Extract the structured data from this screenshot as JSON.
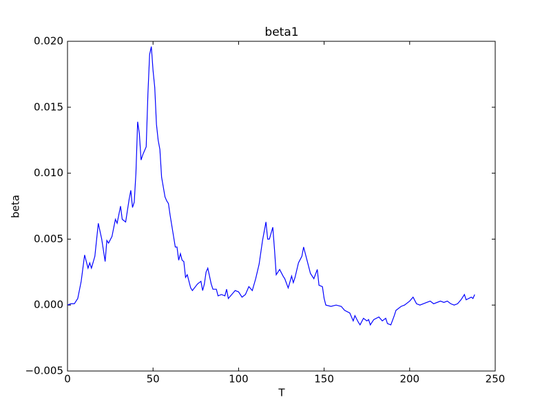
{
  "chart_data": {
    "type": "line",
    "title": "beta1",
    "xlabel": "T",
    "ylabel": "beta",
    "color": "#0000ff",
    "x": [
      0,
      2,
      4,
      6,
      8,
      10,
      12,
      13,
      14,
      16,
      18,
      20,
      22,
      23,
      24,
      26,
      28,
      29,
      31,
      32,
      34,
      36,
      37,
      38,
      39,
      40,
      41,
      42,
      43,
      44,
      46,
      47,
      48,
      49,
      50,
      51,
      52,
      53,
      54,
      55,
      57,
      58,
      59,
      60,
      62,
      63,
      64,
      65,
      66,
      67,
      68,
      69,
      70,
      72,
      73,
      76,
      78,
      79,
      80,
      81,
      82,
      84,
      85,
      87,
      88,
      90,
      92,
      93,
      94,
      96,
      98,
      100,
      102,
      104,
      106,
      108,
      110,
      112,
      114,
      116,
      117,
      118,
      120,
      121,
      122,
      124,
      126,
      127,
      129,
      131,
      132,
      133,
      135,
      137,
      138,
      140,
      142,
      144,
      146,
      147,
      149,
      150,
      151,
      154,
      157,
      160,
      162,
      165,
      167,
      168,
      170,
      171,
      173,
      175,
      176,
      177,
      179,
      182,
      184,
      186,
      187,
      189,
      191,
      192,
      195,
      197,
      200,
      202,
      204,
      206,
      210,
      212,
      214,
      218,
      220,
      222,
      224,
      226,
      228,
      230,
      232,
      233,
      236,
      237,
      238
    ],
    "values": [
      0.0,
      0.0001,
      0.0001,
      0.0005,
      0.0018,
      0.0038,
      0.0028,
      0.0032,
      0.0028,
      0.0037,
      0.0062,
      0.005,
      0.0033,
      0.0049,
      0.0047,
      0.0052,
      0.0065,
      0.0062,
      0.0075,
      0.0065,
      0.0063,
      0.008,
      0.0087,
      0.0074,
      0.0078,
      0.01,
      0.0139,
      0.013,
      0.011,
      0.0114,
      0.012,
      0.016,
      0.019,
      0.0196,
      0.0178,
      0.0165,
      0.0137,
      0.0125,
      0.0118,
      0.0097,
      0.0082,
      0.0079,
      0.0077,
      0.0068,
      0.0052,
      0.0044,
      0.0044,
      0.0034,
      0.0039,
      0.0034,
      0.0033,
      0.0021,
      0.0023,
      0.0013,
      0.0011,
      0.0016,
      0.0018,
      0.0011,
      0.0016,
      0.0025,
      0.0028,
      0.0016,
      0.0012,
      0.0012,
      0.0007,
      0.0008,
      0.0007,
      0.0012,
      0.0005,
      0.0008,
      0.0011,
      0.001,
      0.0006,
      0.0008,
      0.0014,
      0.0011,
      0.002,
      0.0031,
      0.0049,
      0.0063,
      0.005,
      0.005,
      0.0059,
      0.0042,
      0.0023,
      0.0027,
      0.0022,
      0.002,
      0.0013,
      0.0022,
      0.0017,
      0.0021,
      0.0032,
      0.0037,
      0.0044,
      0.0034,
      0.0024,
      0.002,
      0.0027,
      0.0015,
      0.0014,
      0.0005,
      0.0,
      -0.0001,
      0.0,
      -0.0001,
      -0.0004,
      -0.0006,
      -0.0012,
      -0.0008,
      -0.0013,
      -0.0015,
      -0.001,
      -0.0012,
      -0.0011,
      -0.0015,
      -0.0011,
      -0.0009,
      -0.0012,
      -0.001,
      -0.0014,
      -0.0015,
      -0.0008,
      -0.0004,
      -0.0001,
      0.0,
      0.0003,
      0.0006,
      0.0001,
      0.0,
      0.0002,
      0.0003,
      0.0001,
      0.0003,
      0.0002,
      0.0003,
      0.0001,
      0.0,
      0.0001,
      0.0004,
      0.0008,
      0.0004,
      0.0006,
      0.0005,
      0.0008
    ],
    "xlim": [
      0,
      250
    ],
    "xticks": [
      0,
      50,
      100,
      150,
      200,
      250
    ],
    "ylim": [
      -0.005,
      0.02
    ],
    "yticks": [
      {
        "value": -0.005,
        "label": "−0.005"
      },
      {
        "value": 0,
        "label": "0.000"
      },
      {
        "value": 0.005,
        "label": "0.005"
      },
      {
        "value": 0.01,
        "label": "0.010"
      },
      {
        "value": 0.015,
        "label": "0.015"
      },
      {
        "value": 0.02,
        "label": "0.020"
      }
    ]
  }
}
